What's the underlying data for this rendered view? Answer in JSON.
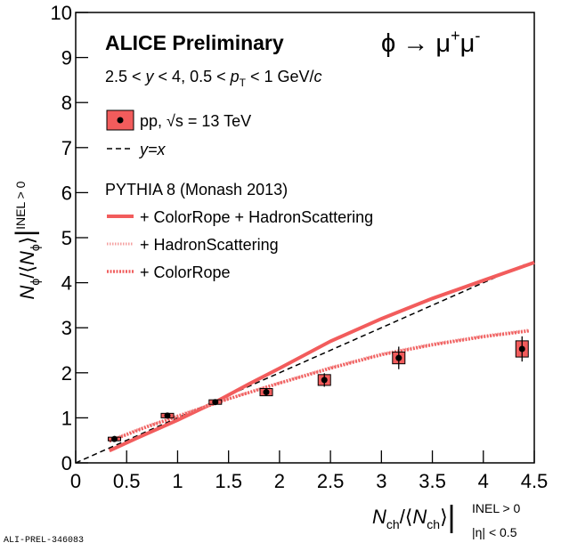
{
  "chart_data": {
    "type": "scatter",
    "title": "ALICE Preliminary",
    "process": [
      "ϕ → μ",
      "+",
      "μ",
      "-"
    ],
    "kinematics": [
      "2.5 < ",
      "y",
      " < 4, 0.5 < ",
      "p",
      "T",
      " < 1 GeV/",
      "c"
    ],
    "y_label": [
      "N",
      "ϕ",
      "/⟨",
      "N",
      "ϕ",
      "⟩",
      "|",
      "INEL > 0"
    ],
    "x_label": [
      "N",
      "ch",
      "/⟨",
      "N",
      "ch",
      "⟩",
      "|",
      "INEL > 0",
      "|η| < 0.5"
    ],
    "model_label": "PYTHIA 8 (Monash 2013)",
    "footer": "ALI-PREL-346083",
    "xlim": [
      0,
      4.5
    ],
    "xticks": [
      0,
      0.5,
      1,
      1.5,
      2,
      2.5,
      3,
      3.5,
      4,
      4.5
    ],
    "ylim": [
      0,
      10
    ],
    "yticks": [
      0,
      1,
      2,
      3,
      4,
      5,
      6,
      7,
      8,
      9,
      10
    ],
    "data_series": {
      "name": "pp, √s = 13 TeV",
      "color": "#f25c5c",
      "x": [
        0.38,
        0.9,
        1.37,
        1.87,
        2.44,
        3.17,
        4.38
      ],
      "values": [
        0.53,
        1.05,
        1.35,
        1.57,
        1.84,
        2.33,
        2.53
      ],
      "stat_err": [
        0.05,
        0.06,
        0.05,
        0.08,
        0.15,
        0.25,
        0.28
      ],
      "sys_err": [
        0.04,
        0.05,
        0.05,
        0.08,
        0.12,
        0.13,
        0.18
      ]
    },
    "series": [
      {
        "name": "y=x",
        "color": "#000000",
        "style": "dashed",
        "x": [
          0,
          4.4
        ],
        "values": [
          0,
          4.4
        ]
      },
      {
        "name": "+ ColorRope + HadronScattering",
        "color": "#f25c5c",
        "style": "solid",
        "x": [
          0.33,
          0.6,
          1,
          1.37,
          1.7,
          2,
          2.5,
          3,
          3.5,
          4,
          4.5
        ],
        "values": [
          0.27,
          0.55,
          0.95,
          1.35,
          1.75,
          2.1,
          2.7,
          3.2,
          3.65,
          4.05,
          4.45
        ]
      },
      {
        "name": "+ HadronScattering",
        "color": "#f4a0a0",
        "style": "dotted",
        "x": [
          0.33,
          0.7,
          1,
          1.5,
          2,
          2.5,
          3,
          3.5,
          4,
          4.45
        ],
        "values": [
          0.5,
          0.82,
          1.05,
          1.43,
          1.78,
          2.12,
          2.42,
          2.64,
          2.82,
          2.95
        ]
      },
      {
        "name": "+ ColorRope",
        "color": "#f06060",
        "style": "dense-dotted",
        "x": [
          0.33,
          0.7,
          1,
          1.5,
          2,
          2.5,
          3,
          3.5,
          4,
          4.45
        ],
        "values": [
          0.48,
          0.8,
          1.03,
          1.42,
          1.77,
          2.1,
          2.4,
          2.62,
          2.8,
          2.93
        ]
      }
    ]
  }
}
